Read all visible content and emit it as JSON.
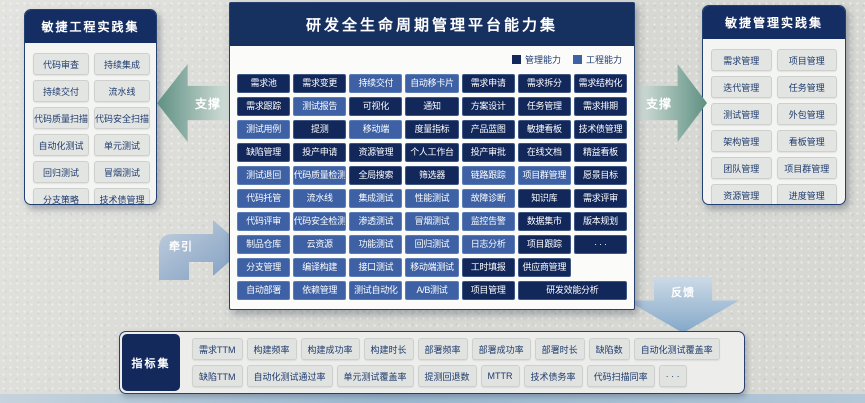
{
  "center": {
    "title": "研发全生命周期管理平台能力集",
    "legend": [
      {
        "label": "管理能力",
        "color": "#12275a"
      },
      {
        "label": "工程能力",
        "color": "#3d61a4"
      }
    ],
    "rows": [
      [
        {
          "t": "需求池",
          "k": "m"
        },
        {
          "t": "需求变更",
          "k": "m"
        },
        {
          "t": "持续交付",
          "k": "e"
        },
        {
          "t": "自动移卡片",
          "k": "e"
        },
        {
          "t": "需求申请",
          "k": "m"
        },
        {
          "t": "需求拆分",
          "k": "m"
        },
        {
          "t": "需求结构化",
          "k": "m"
        }
      ],
      [
        {
          "t": "需求跟踪",
          "k": "m"
        },
        {
          "t": "测试报告",
          "k": "e"
        },
        {
          "t": "可视化",
          "k": "m"
        },
        {
          "t": "通知",
          "k": "m"
        },
        {
          "t": "方案设计",
          "k": "m"
        },
        {
          "t": "任务管理",
          "k": "m"
        },
        {
          "t": "需求排期",
          "k": "m"
        }
      ],
      [
        {
          "t": "测试用例",
          "k": "e"
        },
        {
          "t": "提测",
          "k": "m"
        },
        {
          "t": "移动端",
          "k": "e"
        },
        {
          "t": "度量指标",
          "k": "m"
        },
        {
          "t": "产品蓝图",
          "k": "m"
        },
        {
          "t": "敏捷看板",
          "k": "m"
        },
        {
          "t": "技术债管理",
          "k": "m"
        }
      ],
      [
        {
          "t": "缺陷管理",
          "k": "m"
        },
        {
          "t": "投产申请",
          "k": "m"
        },
        {
          "t": "资源管理",
          "k": "m"
        },
        {
          "t": "个人工作台",
          "k": "m"
        },
        {
          "t": "投产审批",
          "k": "m"
        },
        {
          "t": "在线文档",
          "k": "m"
        },
        {
          "t": "精益看板",
          "k": "m"
        }
      ],
      [
        {
          "t": "测试退回",
          "k": "e"
        },
        {
          "t": "代码质量检测",
          "k": "e"
        },
        {
          "t": "全局搜索",
          "k": "m"
        },
        {
          "t": "筛选器",
          "k": "m"
        },
        {
          "t": "链路跟踪",
          "k": "e"
        },
        {
          "t": "项目群管理",
          "k": "e"
        },
        {
          "t": "愿景目标",
          "k": "m"
        }
      ],
      [
        {
          "t": "代码托管",
          "k": "e"
        },
        {
          "t": "流水线",
          "k": "e"
        },
        {
          "t": "集成测试",
          "k": "e"
        },
        {
          "t": "性能测试",
          "k": "e"
        },
        {
          "t": "故障诊断",
          "k": "e"
        },
        {
          "t": "知识库",
          "k": "m"
        },
        {
          "t": "需求评审",
          "k": "m"
        }
      ],
      [
        {
          "t": "代码评审",
          "k": "e"
        },
        {
          "t": "代码安全检测",
          "k": "e"
        },
        {
          "t": "渗透测试",
          "k": "e"
        },
        {
          "t": "冒烟测试",
          "k": "e"
        },
        {
          "t": "监控告警",
          "k": "e"
        },
        {
          "t": "数据集市",
          "k": "m"
        },
        {
          "t": "版本规划",
          "k": "m"
        }
      ],
      [
        {
          "t": "制品仓库",
          "k": "e"
        },
        {
          "t": "云资源",
          "k": "e"
        },
        {
          "t": "功能测试",
          "k": "e"
        },
        {
          "t": "回归测试",
          "k": "e"
        },
        {
          "t": "日志分析",
          "k": "e"
        },
        {
          "t": "项目跟踪",
          "k": "m"
        },
        {
          "t": "· · ·",
          "k": "m"
        }
      ],
      [
        {
          "t": "分支管理",
          "k": "e"
        },
        {
          "t": "编译构建",
          "k": "e"
        },
        {
          "t": "接口测试",
          "k": "e"
        },
        {
          "t": "移动端测试",
          "k": "e"
        },
        {
          "t": "工时填报",
          "k": "m"
        },
        {
          "t": "供应商管理",
          "k": "m"
        }
      ],
      [
        {
          "t": "自动部署",
          "k": "e"
        },
        {
          "t": "依赖管理",
          "k": "e"
        },
        {
          "t": "测试自动化",
          "k": "e"
        },
        {
          "t": "A/B测试",
          "k": "e"
        },
        {
          "t": "项目管理",
          "k": "m"
        },
        {
          "t": "研发效能分析",
          "k": "m",
          "span": 2
        }
      ]
    ]
  },
  "left_panel": {
    "title": "敏捷工程实践集",
    "items": [
      "代码审查",
      "持续集成",
      "持续交付",
      "流水线",
      "代码质量扫描",
      "代码安全扫描",
      "自动化测试",
      "单元测试",
      "回归测试",
      "冒烟测试",
      "分支策略",
      "技术债管理"
    ]
  },
  "right_panel": {
    "title": "敏捷管理实践集",
    "items": [
      "需求管理",
      "项目管理",
      "迭代管理",
      "任务管理",
      "测试管理",
      "外包管理",
      "架构管理",
      "看板管理",
      "团队管理",
      "项目群管理",
      "资源管理",
      "进度管理"
    ]
  },
  "arrows": {
    "support_left": "支撑",
    "support_right": "支撑",
    "pull": "牵引",
    "feedback": "反馈"
  },
  "metrics": {
    "title": "指标集",
    "row1": [
      "需求TTM",
      "构建频率",
      "构建成功率",
      "构建时长",
      "部署频率",
      "部署成功率",
      "部署时长",
      "缺陷数",
      "自动化测试覆盖率"
    ],
    "row2": [
      "缺陷TTM",
      "自动化测试通过率",
      "单元测试覆盖率",
      "提测回退数",
      "MTTR",
      "技术债务率",
      "代码扫描同率",
      "· · ·"
    ]
  },
  "colors": {
    "management": "#12275a",
    "engineering": "#3d61a4",
    "panel_header": "#142d62",
    "support_arrow": "#5e9082",
    "pull_arrow": "#7d9cc0",
    "feedback_arrow": "#84a8c8"
  }
}
